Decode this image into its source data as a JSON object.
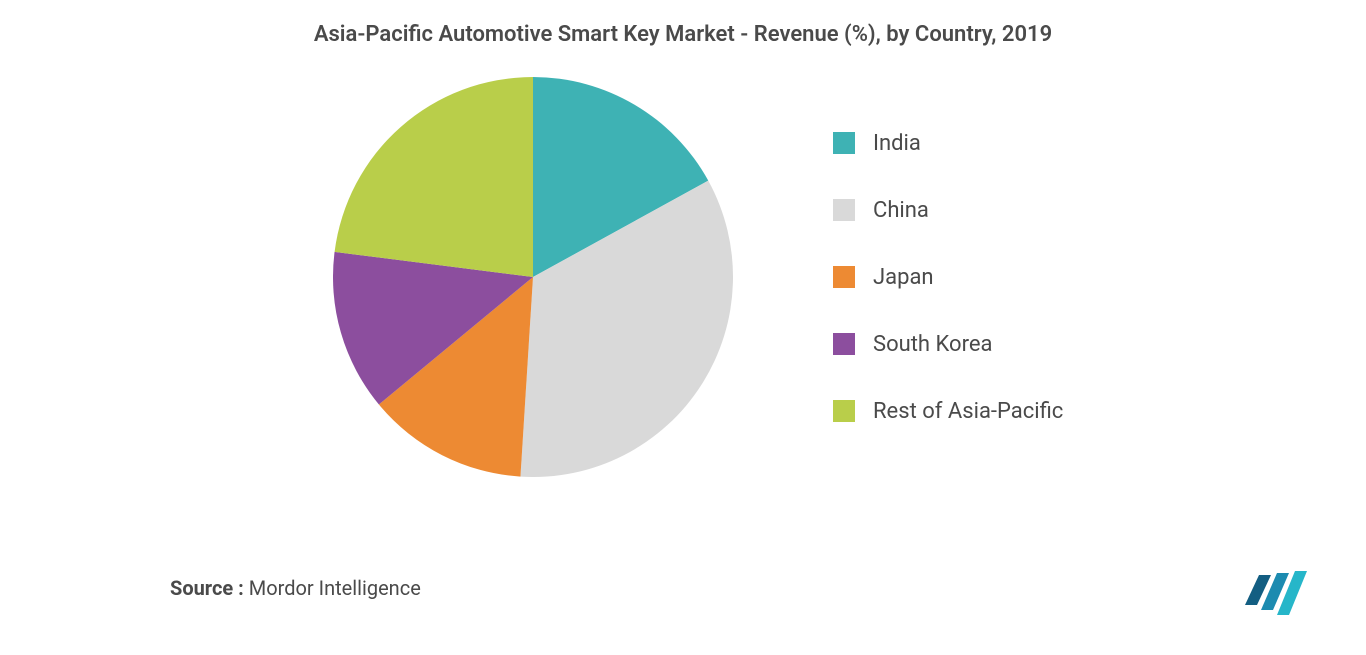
{
  "chart": {
    "type": "pie",
    "title": "Asia-Pacific Automotive Smart Key Market - Revenue (%), by Country, 2019",
    "title_fontsize": 22,
    "title_color": "#4a4a4a",
    "background_color": "#ffffff",
    "pie_radius": 200,
    "slices": [
      {
        "label": "India",
        "value": 17,
        "color": "#3eb2b4"
      },
      {
        "label": "China",
        "value": 34,
        "color": "#d9d9d9"
      },
      {
        "label": "Japan",
        "value": 13,
        "color": "#ed8a33"
      },
      {
        "label": "South Korea",
        "value": 13,
        "color": "#8c4e9e"
      },
      {
        "label": "Rest of Asia-Pacific",
        "value": 23,
        "color": "#b9ce4a"
      }
    ],
    "legend": {
      "position": "right",
      "fontsize": 22,
      "text_color": "#4a4a4a",
      "swatch_size": 22,
      "gap": 42
    }
  },
  "source": {
    "label": "Source :",
    "value": " Mordor Intelligence",
    "fontsize": 20,
    "color": "#4a4a4a"
  },
  "logo": {
    "name": "mordor-intelligence-logo",
    "bar_colors": [
      "#135e82",
      "#1c8bb0",
      "#26b6c9"
    ]
  }
}
